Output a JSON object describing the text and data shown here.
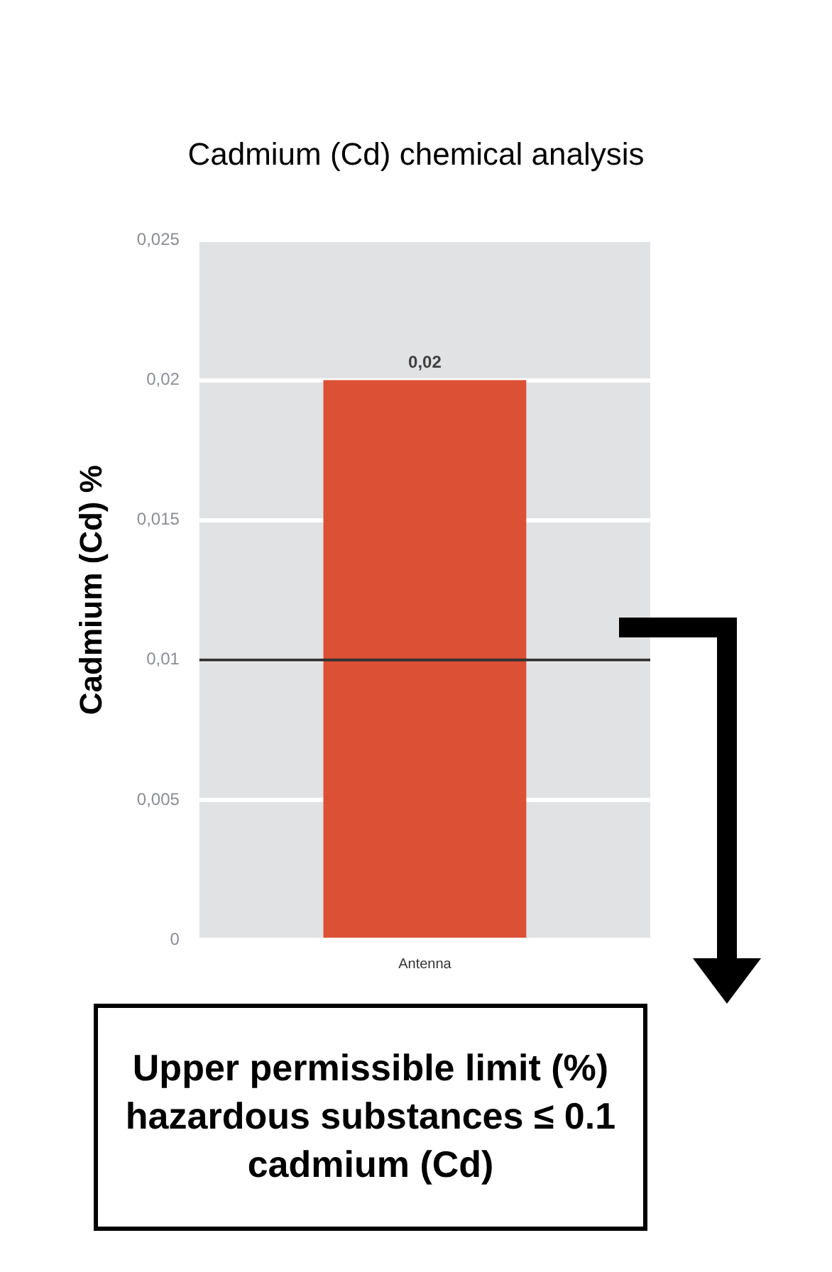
{
  "chart_data": {
    "type": "bar",
    "title": "Cadmium (Cd) chemical analysis",
    "ylabel": "Cadmium (Cd) %",
    "categories": [
      "Antenna"
    ],
    "values": [
      0.02
    ],
    "color": "#dc5035",
    "value_labels": [
      "0,02"
    ],
    "ylim": [
      0,
      0.025
    ],
    "yticks": [
      0,
      {
        "value": 0.005,
        "label": "0,005"
      },
      {
        "value": 0.01,
        "label": "0,01"
      },
      {
        "value": 0.015,
        "label": "0,015"
      },
      {
        "value": 0.02,
        "label": "0,02"
      },
      {
        "value": 0.025,
        "label": "0,025"
      }
    ],
    "grid": "y",
    "legend": false,
    "ref_lines": [
      {
        "axis": "y",
        "value": 0.01,
        "color": "#333333"
      }
    ],
    "annotations": [
      "Upper permissible limit (%) hazardous substances ≤ 0.1 cadmium (Cd)"
    ]
  }
}
